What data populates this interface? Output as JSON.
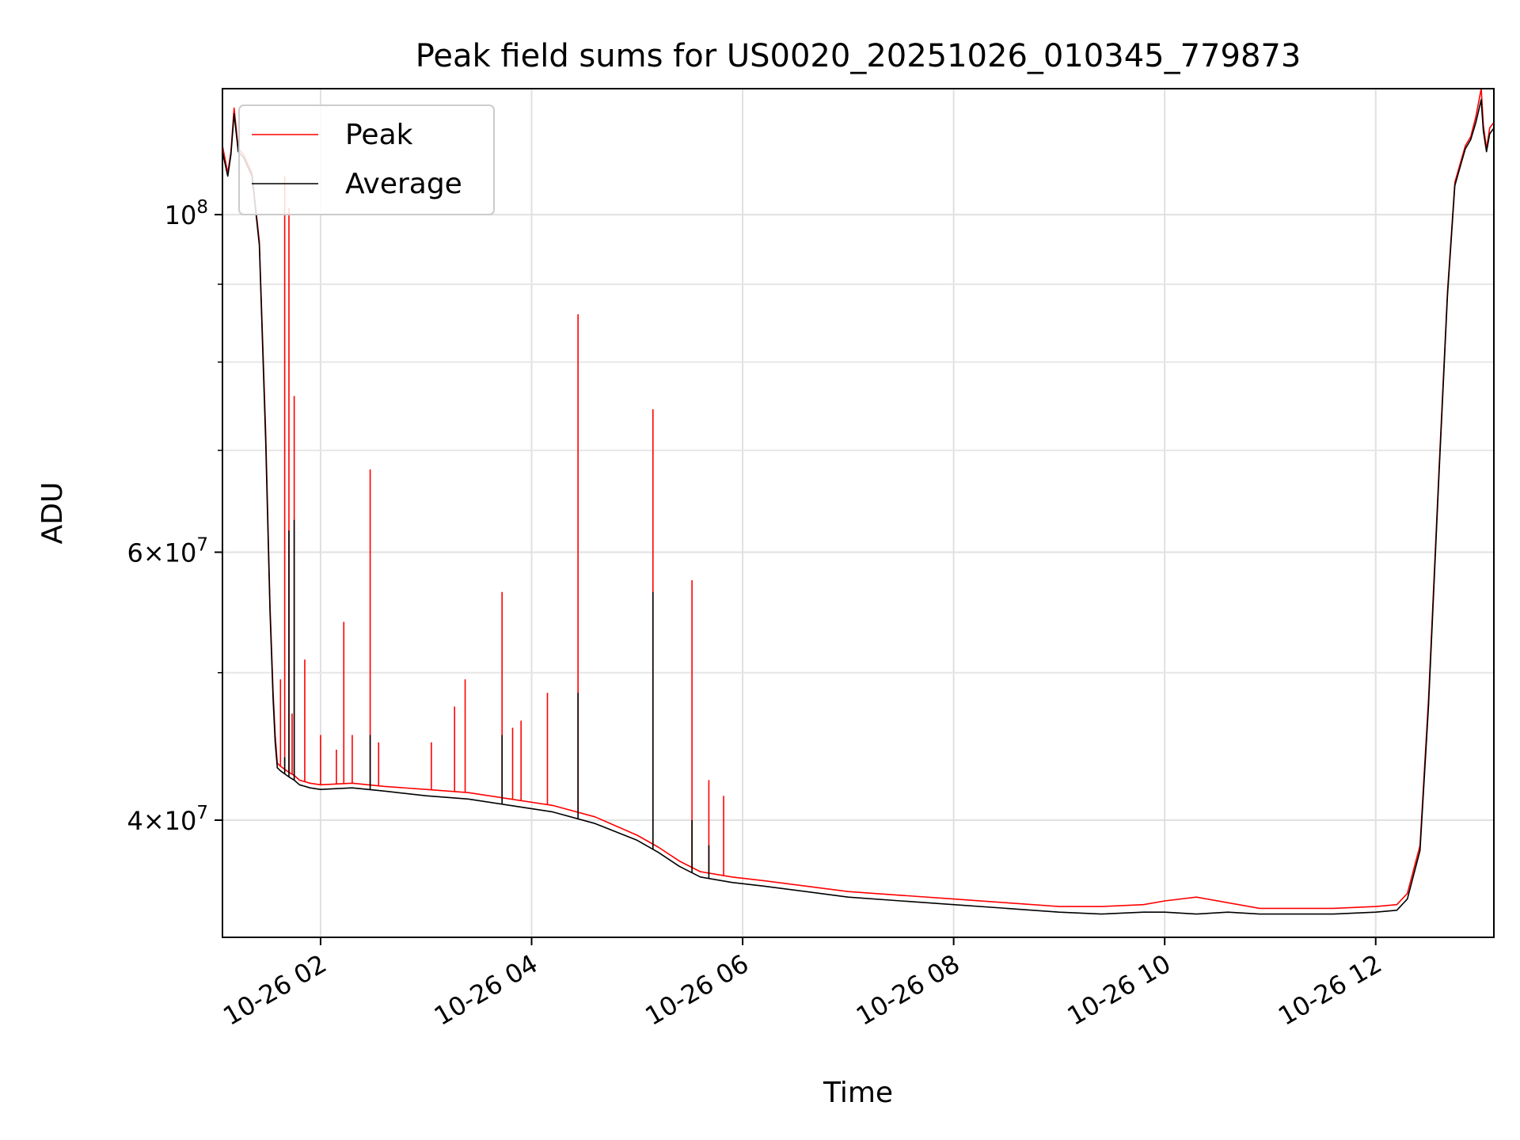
{
  "chart_data": {
    "type": "line",
    "title": "Peak field sums for US0020_20251026_010345_779873",
    "xlabel": "Time",
    "ylabel": "ADU",
    "yscale": "log",
    "xlim": [
      1.07,
      13.12
    ],
    "ylim": [
      33500000,
      121000000
    ],
    "grid": true,
    "legend_position": "top-left",
    "x_unit": "hours since 2025-10-26 00:00",
    "x_ticks": [
      {
        "value": 2,
        "label": "10-26 02"
      },
      {
        "value": 4,
        "label": "10-26 04"
      },
      {
        "value": 6,
        "label": "10-26 06"
      },
      {
        "value": 8,
        "label": "10-26 08"
      },
      {
        "value": 10,
        "label": "10-26 10"
      },
      {
        "value": 12,
        "label": "10-26 12"
      }
    ],
    "y_major_ticks": [
      {
        "value": 40000000,
        "mant": "4",
        "exp": "7"
      },
      {
        "value": 60000000,
        "mant": "6",
        "exp": "7"
      },
      {
        "value": 100000000,
        "mant": "",
        "exp": "8"
      }
    ],
    "y_minor_ticks": [
      50000000,
      70000000,
      80000000,
      90000000
    ],
    "series": [
      {
        "name": "Peak",
        "color": "#ff0000",
        "x": [
          1.07,
          1.12,
          1.15,
          1.18,
          1.22,
          1.27,
          1.35,
          1.42,
          1.48,
          1.52,
          1.55,
          1.57,
          1.59,
          1.62,
          1.66,
          1.7,
          1.75,
          1.8,
          1.9,
          2.0,
          2.3,
          2.6,
          3.0,
          3.4,
          3.8,
          4.2,
          4.6,
          5.0,
          5.2,
          5.4,
          5.6,
          5.9,
          6.2,
          6.6,
          7.0,
          7.5,
          8.0,
          8.5,
          9.0,
          9.4,
          9.8,
          10.0,
          10.3,
          10.6,
          10.9,
          11.2,
          11.6,
          12.0,
          12.2,
          12.3,
          12.42,
          12.5,
          12.6,
          12.68,
          12.75,
          12.8,
          12.85,
          12.9,
          12.95,
          13.0,
          13.02,
          13.05,
          13.08,
          13.12
        ],
        "y": [
          111000000,
          106500000,
          110000000,
          117500000,
          110500000,
          109500000,
          106500000,
          96000000,
          72000000,
          55500000,
          48500000,
          45500000,
          43600000,
          43400000,
          43200000,
          43000000,
          42800000,
          42500000,
          42300000,
          42200000,
          42300000,
          42100000,
          41900000,
          41700000,
          41300000,
          40900000,
          40200000,
          39100000,
          38400000,
          37600000,
          37000000,
          36700000,
          36500000,
          36200000,
          35900000,
          35700000,
          35500000,
          35300000,
          35100000,
          35100000,
          35200000,
          35400000,
          35600000,
          35300000,
          35000000,
          35000000,
          35000000,
          35100000,
          35200000,
          35800000,
          38500000,
          48000000,
          68000000,
          89000000,
          105000000,
          108000000,
          111000000,
          112500000,
          116000000,
          121000000,
          114500000,
          110500000,
          114000000,
          115000000
        ]
      },
      {
        "name": "Average",
        "color": "#000000",
        "x": [
          1.07,
          1.12,
          1.15,
          1.18,
          1.22,
          1.27,
          1.35,
          1.42,
          1.48,
          1.52,
          1.55,
          1.57,
          1.59,
          1.62,
          1.66,
          1.7,
          1.75,
          1.8,
          1.9,
          2.0,
          2.3,
          2.6,
          3.0,
          3.4,
          3.8,
          4.2,
          4.6,
          5.0,
          5.2,
          5.4,
          5.6,
          5.9,
          6.2,
          6.6,
          7.0,
          7.5,
          8.0,
          8.5,
          9.0,
          9.4,
          9.8,
          10.0,
          10.3,
          10.6,
          10.9,
          11.2,
          11.6,
          12.0,
          12.2,
          12.3,
          12.42,
          12.5,
          12.6,
          12.68,
          12.75,
          12.8,
          12.85,
          12.9,
          12.95,
          13.0,
          13.02,
          13.05,
          13.08,
          13.12
        ],
        "y": [
          110000000,
          106000000,
          109500000,
          116500000,
          110000000,
          109000000,
          106000000,
          95500000,
          71000000,
          55000000,
          48000000,
          45000000,
          43300000,
          43100000,
          42900000,
          42700000,
          42500000,
          42200000,
          42000000,
          41900000,
          42000000,
          41800000,
          41500000,
          41300000,
          40900000,
          40500000,
          39800000,
          38800000,
          38100000,
          37300000,
          36700000,
          36400000,
          36200000,
          35900000,
          35600000,
          35400000,
          35200000,
          35000000,
          34800000,
          34700000,
          34800000,
          34800000,
          34700000,
          34800000,
          34700000,
          34700000,
          34700000,
          34800000,
          34900000,
          35500000,
          38200000,
          47500000,
          67500000,
          88500000,
          104500000,
          107500000,
          110500000,
          112000000,
          115000000,
          119000000,
          113500000,
          110000000,
          113000000,
          114000000
        ]
      }
    ],
    "spikes": {
      "peak": [
        {
          "x": 1.62,
          "y": 49500000
        },
        {
          "x": 1.66,
          "y": 106000000
        },
        {
          "x": 1.7,
          "y": 101000000
        },
        {
          "x": 1.73,
          "y": 47000000
        },
        {
          "x": 1.75,
          "y": 76000000
        },
        {
          "x": 1.85,
          "y": 51000000
        },
        {
          "x": 2.0,
          "y": 45500000
        },
        {
          "x": 2.15,
          "y": 44500000
        },
        {
          "x": 2.22,
          "y": 54000000
        },
        {
          "x": 2.3,
          "y": 45500000
        },
        {
          "x": 2.47,
          "y": 68000000
        },
        {
          "x": 2.55,
          "y": 45000000
        },
        {
          "x": 3.05,
          "y": 45000000
        },
        {
          "x": 3.27,
          "y": 47500000
        },
        {
          "x": 3.37,
          "y": 49500000
        },
        {
          "x": 3.72,
          "y": 56500000
        },
        {
          "x": 3.82,
          "y": 46000000
        },
        {
          "x": 3.9,
          "y": 46500000
        },
        {
          "x": 4.15,
          "y": 48500000
        },
        {
          "x": 4.44,
          "y": 86000000
        },
        {
          "x": 5.15,
          "y": 74500000
        },
        {
          "x": 5.52,
          "y": 57500000
        },
        {
          "x": 5.68,
          "y": 42500000
        },
        {
          "x": 5.82,
          "y": 41500000
        }
      ],
      "average": [
        {
          "x": 1.66,
          "y": 44000000
        },
        {
          "x": 1.7,
          "y": 62000000
        },
        {
          "x": 1.75,
          "y": 63000000
        },
        {
          "x": 2.47,
          "y": 45500000
        },
        {
          "x": 3.72,
          "y": 45500000
        },
        {
          "x": 4.44,
          "y": 48500000
        },
        {
          "x": 5.15,
          "y": 56500000
        },
        {
          "x": 5.52,
          "y": 40000000
        },
        {
          "x": 5.68,
          "y": 38500000
        }
      ]
    }
  }
}
